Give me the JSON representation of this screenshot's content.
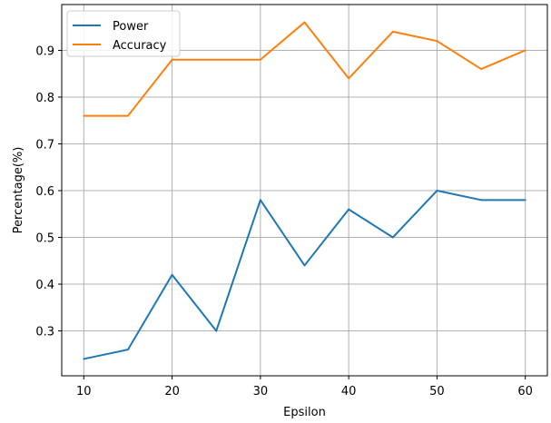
{
  "chart_data": {
    "type": "line",
    "title": "",
    "xlabel": "Epsilon",
    "ylabel": "Percentage(%)",
    "x": [
      10,
      15,
      20,
      25,
      30,
      35,
      40,
      45,
      50,
      55,
      60
    ],
    "series": [
      {
        "name": "Power",
        "color": "#1f77b4",
        "values": [
          0.24,
          0.26,
          0.42,
          0.3,
          0.58,
          0.44,
          0.56,
          0.5,
          0.6,
          0.58,
          0.58
        ]
      },
      {
        "name": "Accuracy",
        "color": "#ff7f0e",
        "values": [
          0.76,
          0.76,
          0.88,
          0.88,
          0.88,
          0.96,
          0.84,
          0.94,
          0.92,
          0.86,
          0.9
        ]
      }
    ],
    "xlim": [
      7.5,
      62.5
    ],
    "ylim": [
      0.204,
      0.998
    ],
    "xticks": [
      10,
      20,
      30,
      40,
      50,
      60
    ],
    "xtick_labels": [
      "10",
      "20",
      "30",
      "40",
      "50",
      "60"
    ],
    "yticks": [
      0.3,
      0.4,
      0.5,
      0.6,
      0.7,
      0.8,
      0.9
    ],
    "ytick_labels": [
      "0.3",
      "0.4",
      "0.5",
      "0.6",
      "0.7",
      "0.8",
      "0.9"
    ],
    "grid": true,
    "legend_position": "top-left"
  }
}
